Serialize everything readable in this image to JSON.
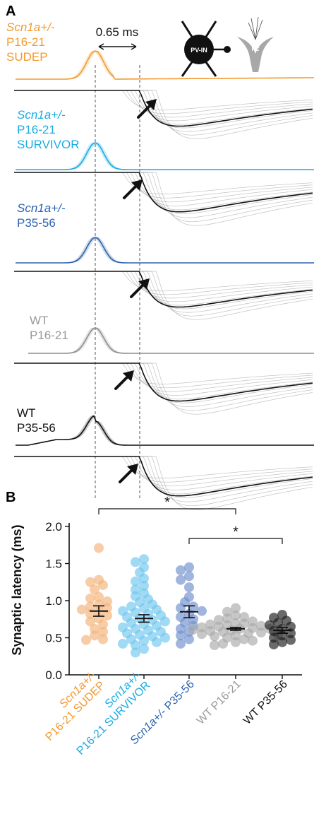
{
  "panel_a": {
    "label": "A",
    "time_annotation": "0.65 ms",
    "pv_in_label": "PV-IN",
    "pc_label": "PC",
    "groups": [
      {
        "line1": "Scn1a+/-",
        "line2": "P16-21",
        "line3": "SUDEP",
        "color": "#F39A2E",
        "trace_color": "#F39A2E",
        "italic_line1": true
      },
      {
        "line1": "Scn1a+/-",
        "line2": "P16-21",
        "line3": "SURVIVOR",
        "color": "#1AACE3",
        "trace_color": "#1AACE3",
        "italic_line1": true
      },
      {
        "line1": "Scn1a+/-",
        "line2": "P35-56",
        "line3": "",
        "color": "#2E63AE",
        "trace_color": "#2E63AE",
        "italic_line1": true
      },
      {
        "line1": "WT",
        "line2": "P16-21",
        "line3": "",
        "color": "#9A9A9A",
        "trace_color": "#8E8E8E",
        "italic_line1": false
      },
      {
        "line1": "WT",
        "line2": "P35-56",
        "line3": "",
        "color": "#111111",
        "trace_color": "#111111",
        "italic_line1": false
      }
    ]
  },
  "panel_b": {
    "label": "B",
    "significance_marker": "*"
  },
  "chart_data": {
    "type": "scatter",
    "ylabel": "Synaptic latency (ms)",
    "xlabel": "",
    "ylim": [
      0,
      2.0
    ],
    "yticks": [
      "0.0",
      "0.5",
      "1.0",
      "1.5",
      "2.0"
    ],
    "error_bars": "mean ± SEM",
    "significance": [
      {
        "from": "Scn1a+/- P16-21 SUDEP",
        "to": "WT P16-21",
        "label": "*"
      },
      {
        "from": "Scn1a+/- P35-56",
        "to": "WT P35-56",
        "label": "*"
      }
    ],
    "series": [
      {
        "name": "Scn1a+/- P16-21 SUDEP",
        "color": "#F2B27A",
        "mean": 0.86,
        "sem": 0.07,
        "values": [
          1.71,
          1.28,
          1.25,
          1.21,
          1.15,
          1.05,
          1.03,
          0.99,
          0.95,
          0.92,
          0.9,
          0.88,
          0.85,
          0.82,
          0.8,
          0.76,
          0.72,
          0.68,
          0.62,
          0.58,
          0.53,
          0.48,
          0.47
        ]
      },
      {
        "name": "Scn1a+/- P16-21 SURVIVOR",
        "color": "#6EC6EE",
        "mean": 0.76,
        "sem": 0.05,
        "values": [
          1.56,
          1.52,
          1.45,
          1.38,
          1.3,
          1.26,
          1.2,
          1.15,
          1.1,
          1.06,
          1.02,
          0.98,
          0.95,
          0.92,
          0.9,
          0.88,
          0.86,
          0.84,
          0.82,
          0.8,
          0.78,
          0.76,
          0.74,
          0.72,
          0.7,
          0.68,
          0.66,
          0.64,
          0.62,
          0.6,
          0.58,
          0.56,
          0.54,
          0.52,
          0.5,
          0.48,
          0.46,
          0.44,
          0.42,
          0.4,
          0.35,
          0.3
        ]
      },
      {
        "name": "Scn1a+/- P35-56",
        "color": "#6F8FCC",
        "mean": 0.85,
        "sem": 0.08,
        "values": [
          1.45,
          1.41,
          1.33,
          1.28,
          1.18,
          1.05,
          0.98,
          0.92,
          0.9,
          0.86,
          0.82,
          0.78,
          0.75,
          0.7,
          0.66,
          0.62,
          0.58,
          0.53,
          0.48,
          0.42
        ]
      },
      {
        "name": "WT P16-21",
        "color": "#A9A9A9",
        "mean": 0.62,
        "sem": 0.02,
        "values": [
          0.9,
          0.85,
          0.8,
          0.78,
          0.76,
          0.74,
          0.72,
          0.7,
          0.69,
          0.68,
          0.67,
          0.66,
          0.65,
          0.64,
          0.63,
          0.62,
          0.62,
          0.61,
          0.6,
          0.6,
          0.59,
          0.58,
          0.57,
          0.56,
          0.55,
          0.54,
          0.53,
          0.52,
          0.5,
          0.48,
          0.46,
          0.44,
          0.42,
          0.4
        ]
      },
      {
        "name": "WT P35-56",
        "color": "#1A1A1A",
        "mean": 0.6,
        "sem": 0.04,
        "values": [
          0.81,
          0.77,
          0.73,
          0.7,
          0.67,
          0.65,
          0.62,
          0.59,
          0.56,
          0.53,
          0.5,
          0.47,
          0.44,
          0.41
        ]
      }
    ],
    "categories": [
      {
        "parts": [
          {
            "t": "Scn1a+/-",
            "italic": true
          },
          {
            "t": "P16-21 SUDEP",
            "italic": false
          }
        ],
        "color": "#F39A2E"
      },
      {
        "parts": [
          {
            "t": "Scn1a+/-",
            "italic": true
          },
          {
            "t": "P16-21 SURVIVOR",
            "italic": false
          }
        ],
        "color": "#1AACE3"
      },
      {
        "parts": [
          {
            "t": "Scn1a+/- ",
            "italic": true
          },
          {
            "t": "P35-56",
            "italic": false
          }
        ],
        "color": "#2E63AE"
      },
      {
        "parts": [
          {
            "t": "WT P16-21",
            "italic": false
          }
        ],
        "color": "#9A9A9A"
      },
      {
        "parts": [
          {
            "t": "WT P35-56",
            "italic": false
          }
        ],
        "color": "#111111"
      }
    ]
  }
}
